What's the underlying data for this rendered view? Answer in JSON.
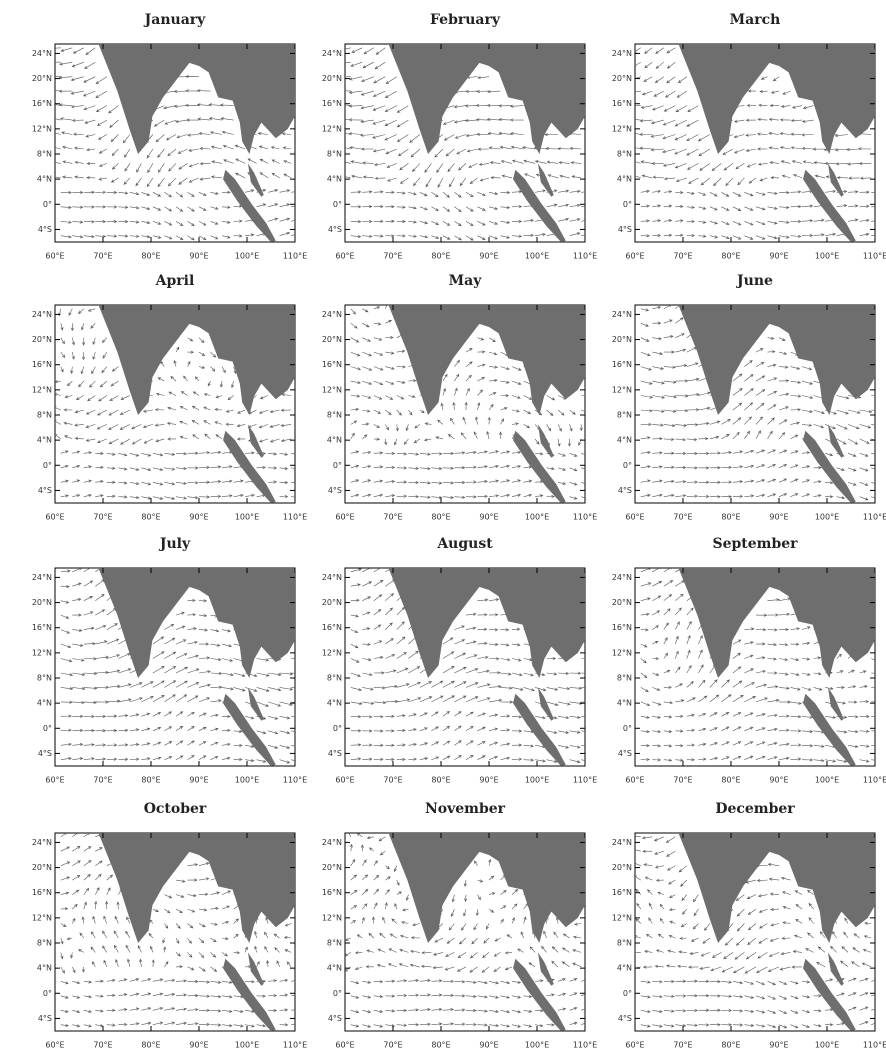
{
  "panels": [
    {
      "title": "January"
    },
    {
      "title": "February"
    },
    {
      "title": "March"
    },
    {
      "title": "April"
    },
    {
      "title": "May"
    },
    {
      "title": "June"
    },
    {
      "title": "July"
    },
    {
      "title": "August"
    },
    {
      "title": "September"
    },
    {
      "title": "October"
    },
    {
      "title": "November"
    },
    {
      "title": "December"
    }
  ],
  "xlim": [
    60,
    110
  ],
  "ylim": [
    -6,
    25.5
  ],
  "xticks": [
    {
      "value": 60,
      "label": "60°E"
    },
    {
      "value": 70,
      "label": "70°E"
    },
    {
      "value": 80,
      "label": "80°E"
    },
    {
      "value": 90,
      "label": "90°E"
    },
    {
      "value": 100,
      "label": "100°E"
    },
    {
      "value": 110,
      "label": "110°E"
    }
  ],
  "yticks": [
    {
      "value": 24,
      "label": "24°N"
    },
    {
      "value": 20,
      "label": "20°N"
    },
    {
      "value": 16,
      "label": "16°N"
    },
    {
      "value": 12,
      "label": "12°N"
    },
    {
      "value": 8,
      "label": "8°N"
    },
    {
      "value": 4,
      "label": "4°N"
    },
    {
      "value": 0,
      "label": "0°"
    },
    {
      "value": -4,
      "label": "4°S"
    }
  ]
}
